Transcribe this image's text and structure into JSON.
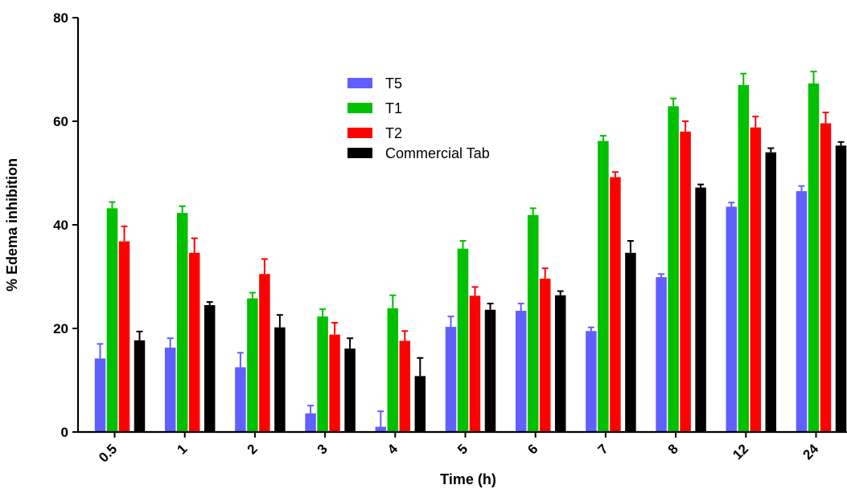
{
  "chart_data": {
    "type": "bar",
    "title": "",
    "xlabel": "Time (h)",
    "ylabel": "% Edema inhibition",
    "ylim": [
      0,
      80
    ],
    "yticks": [
      0,
      20,
      40,
      60,
      80
    ],
    "grid": false,
    "legend_position": "top-center",
    "categories": [
      "0.5",
      "1",
      "2",
      "3",
      "4",
      "5",
      "6",
      "7",
      "8",
      "12",
      "24"
    ],
    "series": [
      {
        "name": "T5",
        "color": "#6060ff",
        "values": [
          14.2,
          16.3,
          12.5,
          3.6,
          1.0,
          20.3,
          23.4,
          19.5,
          29.9,
          43.5,
          46.5
        ],
        "errors": [
          2.8,
          1.8,
          2.8,
          1.5,
          3.0,
          2.0,
          1.4,
          0.7,
          0.6,
          0.8,
          1.0
        ]
      },
      {
        "name": "T1",
        "color": "#00c000",
        "values": [
          43.2,
          42.3,
          25.8,
          22.3,
          23.9,
          35.4,
          41.9,
          56.2,
          62.9,
          67.0,
          67.3
        ],
        "errors": [
          1.2,
          1.3,
          1.1,
          1.4,
          2.5,
          1.5,
          1.3,
          1.0,
          1.5,
          2.2,
          2.3
        ]
      },
      {
        "name": "T2",
        "color": "#ff0000",
        "values": [
          36.8,
          34.6,
          30.5,
          18.8,
          17.6,
          26.3,
          29.6,
          49.2,
          58.0,
          58.8,
          59.6
        ],
        "errors": [
          2.9,
          2.8,
          2.9,
          2.3,
          1.9,
          1.7,
          2.0,
          1.0,
          2.0,
          2.1,
          2.1
        ]
      },
      {
        "name": "Commercial Tab",
        "color": "#000000",
        "values": [
          17.7,
          24.5,
          20.2,
          16.1,
          10.8,
          23.6,
          26.4,
          34.6,
          47.2,
          54.0,
          55.3
        ],
        "errors": [
          1.7,
          0.6,
          2.4,
          2.0,
          3.5,
          1.2,
          0.8,
          2.3,
          0.6,
          0.8,
          0.7
        ]
      }
    ]
  }
}
